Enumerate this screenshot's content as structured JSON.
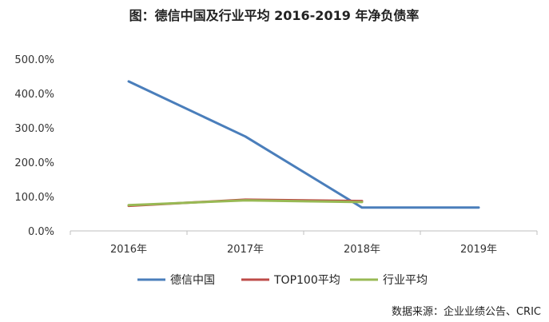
{
  "chart_data": {
    "type": "line",
    "title": "图：德信中国及行业平均 2016-2019 年净负债率",
    "categories": [
      "2016年",
      "2017年",
      "2018年",
      "2019年"
    ],
    "y_tick_labels": [
      "0.0%",
      "100.0%",
      "200.0%",
      "300.0%",
      "400.0%",
      "500.0%"
    ],
    "ylim": [
      0,
      500
    ],
    "grid": false,
    "legend_position": "bottom",
    "series": [
      {
        "name": "德信中国",
        "values": [
          435,
          275,
          68,
          68
        ],
        "color": "#4A7EBB"
      },
      {
        "name": "TOP100平均",
        "values": [
          73,
          91,
          87,
          null
        ],
        "color": "#BE4B48"
      },
      {
        "name": "行业平均",
        "values": [
          75,
          89,
          84,
          null
        ],
        "color": "#98B954"
      }
    ],
    "source": "数据来源：企业业绩公告、CRIC"
  }
}
